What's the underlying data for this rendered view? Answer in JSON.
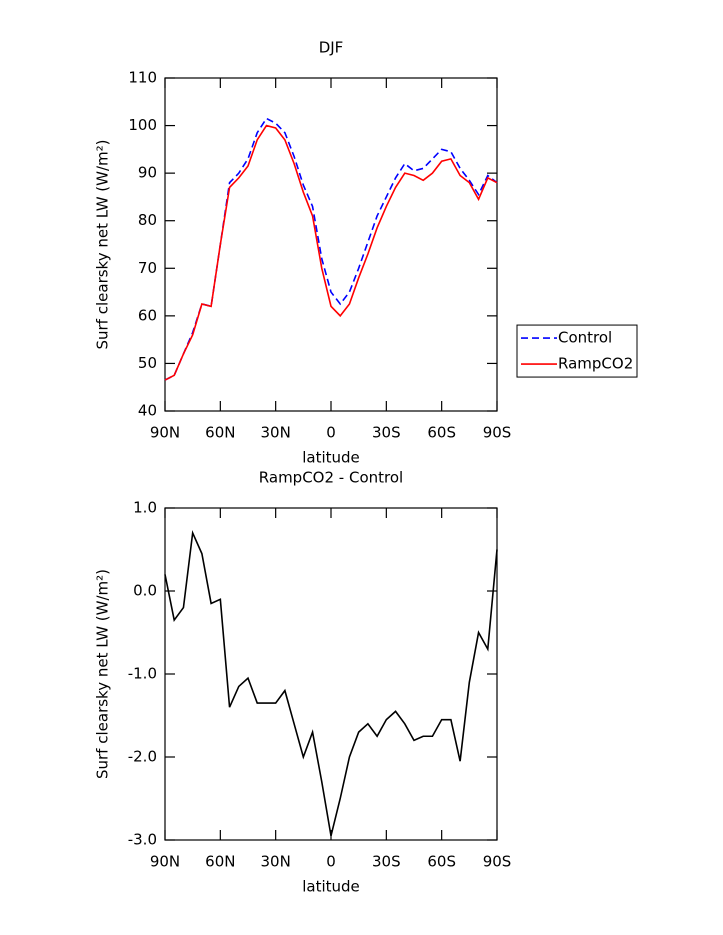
{
  "chart_data": [
    {
      "type": "line",
      "title": "DJF",
      "xlabel": "latitude",
      "ylabel": "Surf clearsky net LW (W/m²)",
      "x": [
        90,
        85,
        80,
        75,
        70,
        65,
        60,
        55,
        50,
        45,
        40,
        35,
        30,
        25,
        20,
        15,
        10,
        5,
        0,
        -5,
        -10,
        -15,
        -20,
        -25,
        -30,
        -35,
        -40,
        -45,
        -50,
        -55,
        -60,
        -65,
        -70,
        -75,
        -80,
        -85,
        -90
      ],
      "xlim": [
        90,
        -90
      ],
      "xticks": [
        {
          "value": 90,
          "label": "90N"
        },
        {
          "value": 60,
          "label": "60N"
        },
        {
          "value": 30,
          "label": "30N"
        },
        0,
        {
          "value": -30,
          "label": "30S"
        },
        {
          "value": -60,
          "label": "60S"
        },
        {
          "value": -90,
          "label": "90S"
        }
      ],
      "ylim": [
        40,
        110
      ],
      "yticks": [
        40,
        50,
        60,
        70,
        80,
        90,
        100,
        110
      ],
      "legend": "right",
      "series": [
        {
          "name": "Control",
          "color": "#0000ff",
          "style": "dashed",
          "values": [
            46.5,
            47.5,
            52,
            56.5,
            62.5,
            62,
            75,
            88,
            90,
            93,
            98.5,
            101.5,
            100.5,
            98.5,
            93.5,
            87.5,
            83,
            72,
            65,
            62.5,
            65,
            70,
            75.5,
            81,
            85,
            89,
            92,
            90.5,
            91,
            93,
            95,
            94.5,
            91,
            88.5,
            85.5,
            89.5,
            88
          ]
        },
        {
          "name": "RampCO2",
          "color": "#ff0000",
          "style": "solid",
          "values": [
            46.5,
            47.5,
            52,
            56,
            62.5,
            62,
            75,
            87,
            89,
            91.5,
            97,
            100,
            99.5,
            97,
            92,
            86,
            81,
            70,
            62,
            60,
            62.5,
            68,
            73,
            78.5,
            83,
            87,
            90,
            89.5,
            88.5,
            90,
            92.5,
            93,
            89.5,
            88,
            84.5,
            89,
            88
          ]
        }
      ]
    },
    {
      "type": "line",
      "title": "RampCO2 - Control",
      "xlabel": "latitude",
      "ylabel": "Surf clearsky net LW (W/m²)",
      "x": [
        90,
        85,
        80,
        75,
        70,
        65,
        60,
        55,
        50,
        45,
        40,
        35,
        30,
        25,
        20,
        15,
        10,
        5,
        0,
        -5,
        -10,
        -15,
        -20,
        -25,
        -30,
        -35,
        -40,
        -45,
        -50,
        -55,
        -60,
        -65,
        -70,
        -75,
        -80,
        -85,
        -90
      ],
      "xlim": [
        90,
        -90
      ],
      "xticks": [
        {
          "value": 90,
          "label": "90N"
        },
        {
          "value": 60,
          "label": "60N"
        },
        {
          "value": 30,
          "label": "30N"
        },
        0,
        {
          "value": -30,
          "label": "30S"
        },
        {
          "value": -60,
          "label": "60S"
        },
        {
          "value": -90,
          "label": "90S"
        }
      ],
      "ylim": [
        -3,
        1
      ],
      "yticks": [
        {
          "value": -3,
          "label": "-3.0"
        },
        {
          "value": -2,
          "label": "-2.0"
        },
        {
          "value": -1,
          "label": "-1.0"
        },
        {
          "value": 0,
          "label": "0.0"
        },
        {
          "value": 1,
          "label": "1.0"
        }
      ],
      "color": "#000000",
      "values": [
        0.2,
        -0.35,
        -0.2,
        0.7,
        0.45,
        -0.15,
        -0.1,
        -1.4,
        -1.15,
        -1.05,
        -1.35,
        -1.35,
        -1.35,
        -1.2,
        -1.6,
        -2.0,
        -1.7,
        -2.3,
        -2.95,
        -2.5,
        -2.0,
        -1.7,
        -1.6,
        -1.75,
        -1.55,
        -1.45,
        -1.6,
        -1.8,
        -1.75,
        -1.75,
        -1.55,
        -1.55,
        -2.05,
        -1.1,
        -0.5,
        -0.7,
        0.5
      ]
    }
  ]
}
